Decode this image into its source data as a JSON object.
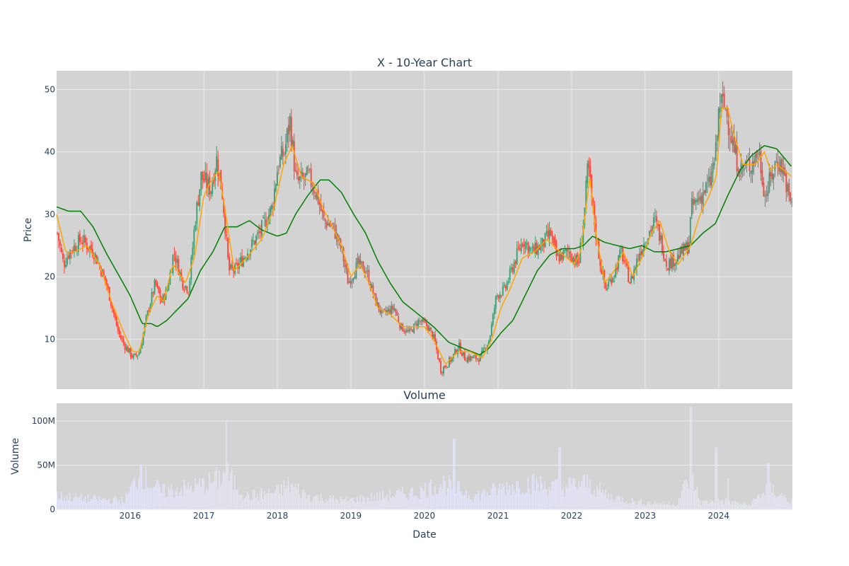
{
  "chart_data": [
    {
      "type": "candlestick",
      "title": "X - 10-Year Chart",
      "ylabel": "Price",
      "xlim": [
        "2015-01-01",
        "2025-01-01"
      ],
      "ylim": [
        2,
        53
      ],
      "yticks": [
        10,
        20,
        30,
        40,
        50
      ],
      "grid": true,
      "plot_bg": "#d3d3d3",
      "colors": {
        "up": "#3d9970",
        "down": "#ff4136",
        "ma_short": "#ffa500",
        "ma_long": "#008000"
      },
      "price_anchors": [
        [
          "2015-01-01",
          27
        ],
        [
          "2015-02-01",
          22
        ],
        [
          "2015-03-01",
          24
        ],
        [
          "2015-05-01",
          26
        ],
        [
          "2015-07-01",
          24
        ],
        [
          "2015-09-01",
          19
        ],
        [
          "2015-10-01",
          15
        ],
        [
          "2015-11-01",
          11
        ],
        [
          "2015-12-01",
          9
        ],
        [
          "2016-01-15",
          7
        ],
        [
          "2016-02-15",
          8
        ],
        [
          "2016-03-15",
          13
        ],
        [
          "2016-05-01",
          19
        ],
        [
          "2016-06-01",
          16
        ],
        [
          "2016-07-01",
          18
        ],
        [
          "2016-08-01",
          24
        ],
        [
          "2016-09-15",
          19
        ],
        [
          "2016-10-15",
          18
        ],
        [
          "2016-11-15",
          29
        ],
        [
          "2016-12-15",
          36
        ],
        [
          "2017-02-01",
          34
        ],
        [
          "2017-03-01",
          39
        ],
        [
          "2017-04-01",
          33
        ],
        [
          "2017-05-01",
          21
        ],
        [
          "2017-06-01",
          21
        ],
        [
          "2017-08-01",
          24
        ],
        [
          "2017-10-01",
          27
        ],
        [
          "2017-12-01",
          31
        ],
        [
          "2018-01-01",
          38
        ],
        [
          "2018-02-01",
          40
        ],
        [
          "2018-03-01",
          45
        ],
        [
          "2018-04-01",
          35
        ],
        [
          "2018-06-01",
          36
        ],
        [
          "2018-07-15",
          33
        ],
        [
          "2018-08-15",
          29
        ],
        [
          "2018-10-01",
          28
        ],
        [
          "2018-11-15",
          24
        ],
        [
          "2018-12-15",
          19
        ],
        [
          "2019-02-01",
          22
        ],
        [
          "2019-03-15",
          21
        ],
        [
          "2019-05-01",
          16
        ],
        [
          "2019-06-01",
          14
        ],
        [
          "2019-08-01",
          15
        ],
        [
          "2019-09-01",
          12
        ],
        [
          "2019-10-15",
          11
        ],
        [
          "2019-12-01",
          13
        ],
        [
          "2020-01-15",
          12
        ],
        [
          "2020-02-15",
          10
        ],
        [
          "2020-03-20",
          5
        ],
        [
          "2020-05-15",
          7
        ],
        [
          "2020-06-15",
          9
        ],
        [
          "2020-07-15",
          7
        ],
        [
          "2020-10-01",
          7
        ],
        [
          "2020-11-15",
          10
        ],
        [
          "2020-12-20",
          17
        ],
        [
          "2021-02-01",
          18
        ],
        [
          "2021-03-15",
          22
        ],
        [
          "2021-05-01",
          26
        ],
        [
          "2021-06-15",
          24
        ],
        [
          "2021-08-01",
          25
        ],
        [
          "2021-09-15",
          27
        ],
        [
          "2021-10-15",
          23
        ],
        [
          "2021-12-15",
          24
        ],
        [
          "2022-02-01",
          22
        ],
        [
          "2022-03-01",
          30
        ],
        [
          "2022-03-20",
          38
        ],
        [
          "2022-04-15",
          30
        ],
        [
          "2022-05-15",
          23
        ],
        [
          "2022-06-15",
          18
        ],
        [
          "2022-08-01",
          21
        ],
        [
          "2022-09-01",
          24
        ],
        [
          "2022-10-15",
          19
        ],
        [
          "2022-12-01",
          24
        ],
        [
          "2023-01-15",
          27
        ],
        [
          "2023-02-15",
          29
        ],
        [
          "2023-03-15",
          26
        ],
        [
          "2023-04-15",
          22
        ],
        [
          "2023-06-01",
          23
        ],
        [
          "2023-08-01",
          25
        ],
        [
          "2023-08-15",
          31
        ],
        [
          "2023-10-01",
          33
        ],
        [
          "2023-11-15",
          35
        ],
        [
          "2023-12-15",
          40
        ],
        [
          "2024-01-01",
          48
        ],
        [
          "2024-02-01",
          47
        ],
        [
          "2024-03-15",
          40
        ],
        [
          "2024-04-15",
          37
        ],
        [
          "2024-06-01",
          38
        ],
        [
          "2024-07-15",
          40
        ],
        [
          "2024-08-15",
          33
        ],
        [
          "2024-09-15",
          36
        ],
        [
          "2024-10-15",
          39
        ],
        [
          "2024-11-15",
          37
        ],
        [
          "2024-12-15",
          32
        ]
      ],
      "ma_short_anchors": [
        [
          "2015-01-01",
          30
        ],
        [
          "2015-02-15",
          24
        ],
        [
          "2015-04-01",
          24
        ],
        [
          "2015-06-01",
          25
        ],
        [
          "2015-08-01",
          22
        ],
        [
          "2015-10-01",
          16
        ],
        [
          "2015-12-01",
          11
        ],
        [
          "2016-01-15",
          8
        ],
        [
          "2016-02-15",
          8
        ],
        [
          "2016-04-01",
          14
        ],
        [
          "2016-05-15",
          17
        ],
        [
          "2016-06-15",
          16
        ],
        [
          "2016-08-01",
          22
        ],
        [
          "2016-10-01",
          19
        ],
        [
          "2016-11-15",
          23
        ],
        [
          "2017-01-01",
          33
        ],
        [
          "2017-02-01",
          35
        ],
        [
          "2017-03-15",
          37
        ],
        [
          "2017-04-15",
          31
        ],
        [
          "2017-06-01",
          21
        ],
        [
          "2017-08-01",
          23
        ],
        [
          "2017-10-15",
          26
        ],
        [
          "2017-12-15",
          31
        ],
        [
          "2018-02-01",
          38
        ],
        [
          "2018-03-15",
          41
        ],
        [
          "2018-05-01",
          36
        ],
        [
          "2018-07-01",
          35
        ],
        [
          "2018-08-15",
          31
        ],
        [
          "2018-10-01",
          28
        ],
        [
          "2018-11-15",
          25
        ],
        [
          "2019-01-01",
          20
        ],
        [
          "2019-02-15",
          22
        ],
        [
          "2019-04-01",
          19
        ],
        [
          "2019-05-15",
          15
        ],
        [
          "2019-07-15",
          14
        ],
        [
          "2019-09-15",
          12
        ],
        [
          "2019-11-01",
          12
        ],
        [
          "2020-01-01",
          12
        ],
        [
          "2020-02-15",
          10
        ],
        [
          "2020-04-15",
          6
        ],
        [
          "2020-06-15",
          8
        ],
        [
          "2020-08-15",
          8
        ],
        [
          "2020-10-15",
          7
        ],
        [
          "2020-12-01",
          10
        ],
        [
          "2021-01-15",
          15
        ],
        [
          "2021-03-01",
          18
        ],
        [
          "2021-05-01",
          23
        ],
        [
          "2021-07-01",
          24
        ],
        [
          "2021-09-01",
          26
        ],
        [
          "2021-11-01",
          24
        ],
        [
          "2022-01-15",
          22
        ],
        [
          "2022-02-15",
          24
        ],
        [
          "2022-04-01",
          36
        ],
        [
          "2022-05-01",
          27
        ],
        [
          "2022-06-15",
          19
        ],
        [
          "2022-08-01",
          21
        ],
        [
          "2022-09-15",
          24
        ],
        [
          "2022-11-01",
          20
        ],
        [
          "2022-12-15",
          23
        ],
        [
          "2023-02-01",
          27
        ],
        [
          "2023-03-15",
          29
        ],
        [
          "2023-05-01",
          24
        ],
        [
          "2023-06-15",
          22
        ],
        [
          "2023-08-15",
          25
        ],
        [
          "2023-10-01",
          30
        ],
        [
          "2023-11-15",
          33
        ],
        [
          "2023-12-20",
          36
        ],
        [
          "2024-01-15",
          47
        ],
        [
          "2024-02-15",
          47
        ],
        [
          "2024-03-15",
          43
        ],
        [
          "2024-05-01",
          38
        ],
        [
          "2024-07-01",
          38
        ],
        [
          "2024-08-15",
          40
        ],
        [
          "2024-09-15",
          37
        ],
        [
          "2024-10-15",
          38
        ],
        [
          "2024-12-31",
          36
        ]
      ],
      "ma_long_anchors": [
        [
          "2015-01-01",
          31.2
        ],
        [
          "2015-03-01",
          30.5
        ],
        [
          "2015-05-01",
          30.5
        ],
        [
          "2015-07-01",
          28
        ],
        [
          "2015-09-01",
          24
        ],
        [
          "2015-11-01",
          20.5
        ],
        [
          "2016-01-01",
          17
        ],
        [
          "2016-03-01",
          12.5
        ],
        [
          "2016-04-15",
          12.5
        ],
        [
          "2016-05-15",
          12
        ],
        [
          "2016-07-01",
          13
        ],
        [
          "2016-08-15",
          14.5
        ],
        [
          "2016-10-15",
          16.5
        ],
        [
          "2016-12-15",
          21
        ],
        [
          "2017-02-15",
          24
        ],
        [
          "2017-04-15",
          28
        ],
        [
          "2017-06-15",
          28
        ],
        [
          "2017-08-15",
          29
        ],
        [
          "2017-10-15",
          27.5
        ],
        [
          "2018-01-01",
          26.5
        ],
        [
          "2018-02-15",
          27
        ],
        [
          "2018-04-01",
          30
        ],
        [
          "2018-06-01",
          33
        ],
        [
          "2018-08-01",
          35.5
        ],
        [
          "2018-09-15",
          35.5
        ],
        [
          "2018-11-15",
          33.5
        ],
        [
          "2019-01-15",
          30
        ],
        [
          "2019-03-15",
          27
        ],
        [
          "2019-05-15",
          22.5
        ],
        [
          "2019-07-15",
          19
        ],
        [
          "2019-09-15",
          16
        ],
        [
          "2019-12-01",
          14
        ],
        [
          "2020-02-15",
          12
        ],
        [
          "2020-05-01",
          9.5
        ],
        [
          "2020-07-15",
          8.5
        ],
        [
          "2020-10-01",
          7.5
        ],
        [
          "2020-11-15",
          8.5
        ],
        [
          "2021-01-15",
          11
        ],
        [
          "2021-03-15",
          13
        ],
        [
          "2021-05-15",
          17
        ],
        [
          "2021-07-15",
          21
        ],
        [
          "2021-09-15",
          23.5
        ],
        [
          "2021-11-15",
          24.5
        ],
        [
          "2022-01-15",
          24.5
        ],
        [
          "2022-03-01",
          25
        ],
        [
          "2022-04-15",
          26.5
        ],
        [
          "2022-06-15",
          25.5
        ],
        [
          "2022-08-15",
          25
        ],
        [
          "2022-10-15",
          24.5
        ],
        [
          "2022-12-15",
          25
        ],
        [
          "2023-02-15",
          24
        ],
        [
          "2023-04-15",
          24
        ],
        [
          "2023-06-15",
          24.5
        ],
        [
          "2023-08-15",
          25
        ],
        [
          "2023-10-15",
          27
        ],
        [
          "2023-12-15",
          28.5
        ],
        [
          "2024-02-15",
          33
        ],
        [
          "2024-04-15",
          37
        ],
        [
          "2024-06-15",
          39.5
        ],
        [
          "2024-08-15",
          41
        ],
        [
          "2024-10-15",
          40.5
        ],
        [
          "2024-12-31",
          37.5
        ]
      ]
    },
    {
      "type": "bar",
      "title": "Volume",
      "xlabel": "Date",
      "ylabel": "Volume",
      "xlim": [
        "2015-01-01",
        "2025-01-01"
      ],
      "ylim": [
        0,
        120000000
      ],
      "yticks": [
        0,
        50000000,
        100000000
      ],
      "ytick_labels": [
        "0",
        "50M",
        "100M"
      ],
      "xtick_labels": [
        "2016",
        "2017",
        "2018",
        "2019",
        "2020",
        "2021",
        "2022",
        "2023",
        "2024"
      ],
      "plot_bg": "#d3d3d3",
      "bar_color": "#e6e6fa",
      "volume_anchors": [
        [
          "2015-01-01",
          15
        ],
        [
          "2015-06-01",
          12
        ],
        [
          "2015-12-01",
          10
        ],
        [
          "2016-02-15",
          40
        ],
        [
          "2016-06-01",
          20
        ],
        [
          "2016-11-01",
          25
        ],
        [
          "2017-02-01",
          30
        ],
        [
          "2017-04-20",
          40
        ],
        [
          "2017-08-01",
          15
        ],
        [
          "2018-01-01",
          20
        ],
        [
          "2018-03-01",
          28
        ],
        [
          "2018-06-01",
          15
        ],
        [
          "2018-12-01",
          10
        ],
        [
          "2019-06-01",
          15
        ],
        [
          "2019-12-01",
          20
        ],
        [
          "2020-04-01",
          30
        ],
        [
          "2020-09-01",
          15
        ],
        [
          "2021-02-01",
          25
        ],
        [
          "2021-06-01",
          30
        ],
        [
          "2021-11-01",
          25
        ],
        [
          "2022-03-15",
          30
        ],
        [
          "2022-07-01",
          15
        ],
        [
          "2022-12-01",
          8
        ],
        [
          "2023-06-01",
          6
        ],
        [
          "2023-08-15",
          40
        ],
        [
          "2023-10-01",
          8
        ],
        [
          "2024-01-15",
          10
        ],
        [
          "2024-06-01",
          5
        ],
        [
          "2024-09-01",
          25
        ],
        [
          "2024-12-31",
          8
        ]
      ],
      "volume_spikes": [
        [
          "2017-04-20",
          100
        ],
        [
          "2020-05-25",
          80
        ],
        [
          "2021-11-01",
          70
        ],
        [
          "2023-08-15",
          116
        ],
        [
          "2023-12-15",
          70
        ],
        [
          "2024-02-15",
          35
        ],
        [
          "2024-09-01",
          52
        ],
        [
          "2016-02-20",
          50
        ]
      ]
    }
  ]
}
